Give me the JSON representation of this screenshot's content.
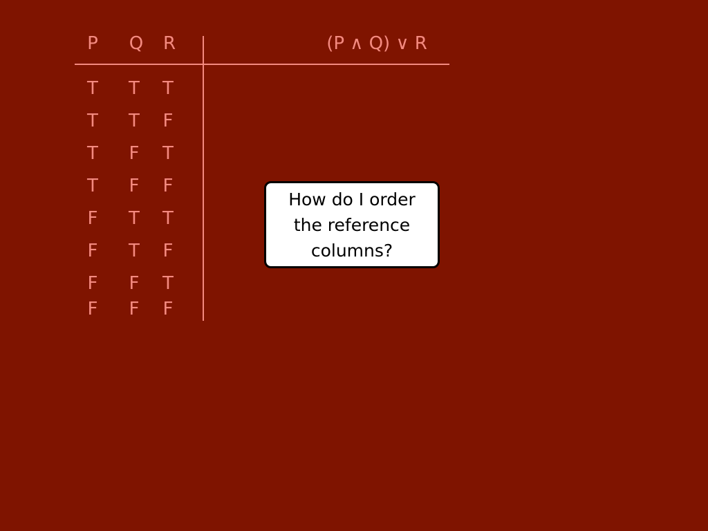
{
  "table": {
    "headers": [
      "P",
      "Q",
      "R"
    ],
    "expression": "(P ∧ Q) ∨ R",
    "rows": [
      [
        "T",
        "T",
        "T"
      ],
      [
        "T",
        "T",
        "F"
      ],
      [
        "T",
        "F",
        "T"
      ],
      [
        "T",
        "F",
        "F"
      ],
      [
        "F",
        "T",
        "T"
      ],
      [
        "F",
        "T",
        "F"
      ],
      [
        "F",
        "F",
        "T"
      ],
      [
        "F",
        "F",
        "F"
      ]
    ]
  },
  "callout": {
    "text": "How do I order the reference columns?"
  },
  "colors": {
    "background": "#7f1400",
    "table_text": "#f48a80",
    "callout_bg": "#ffffff",
    "callout_border": "#000000"
  }
}
